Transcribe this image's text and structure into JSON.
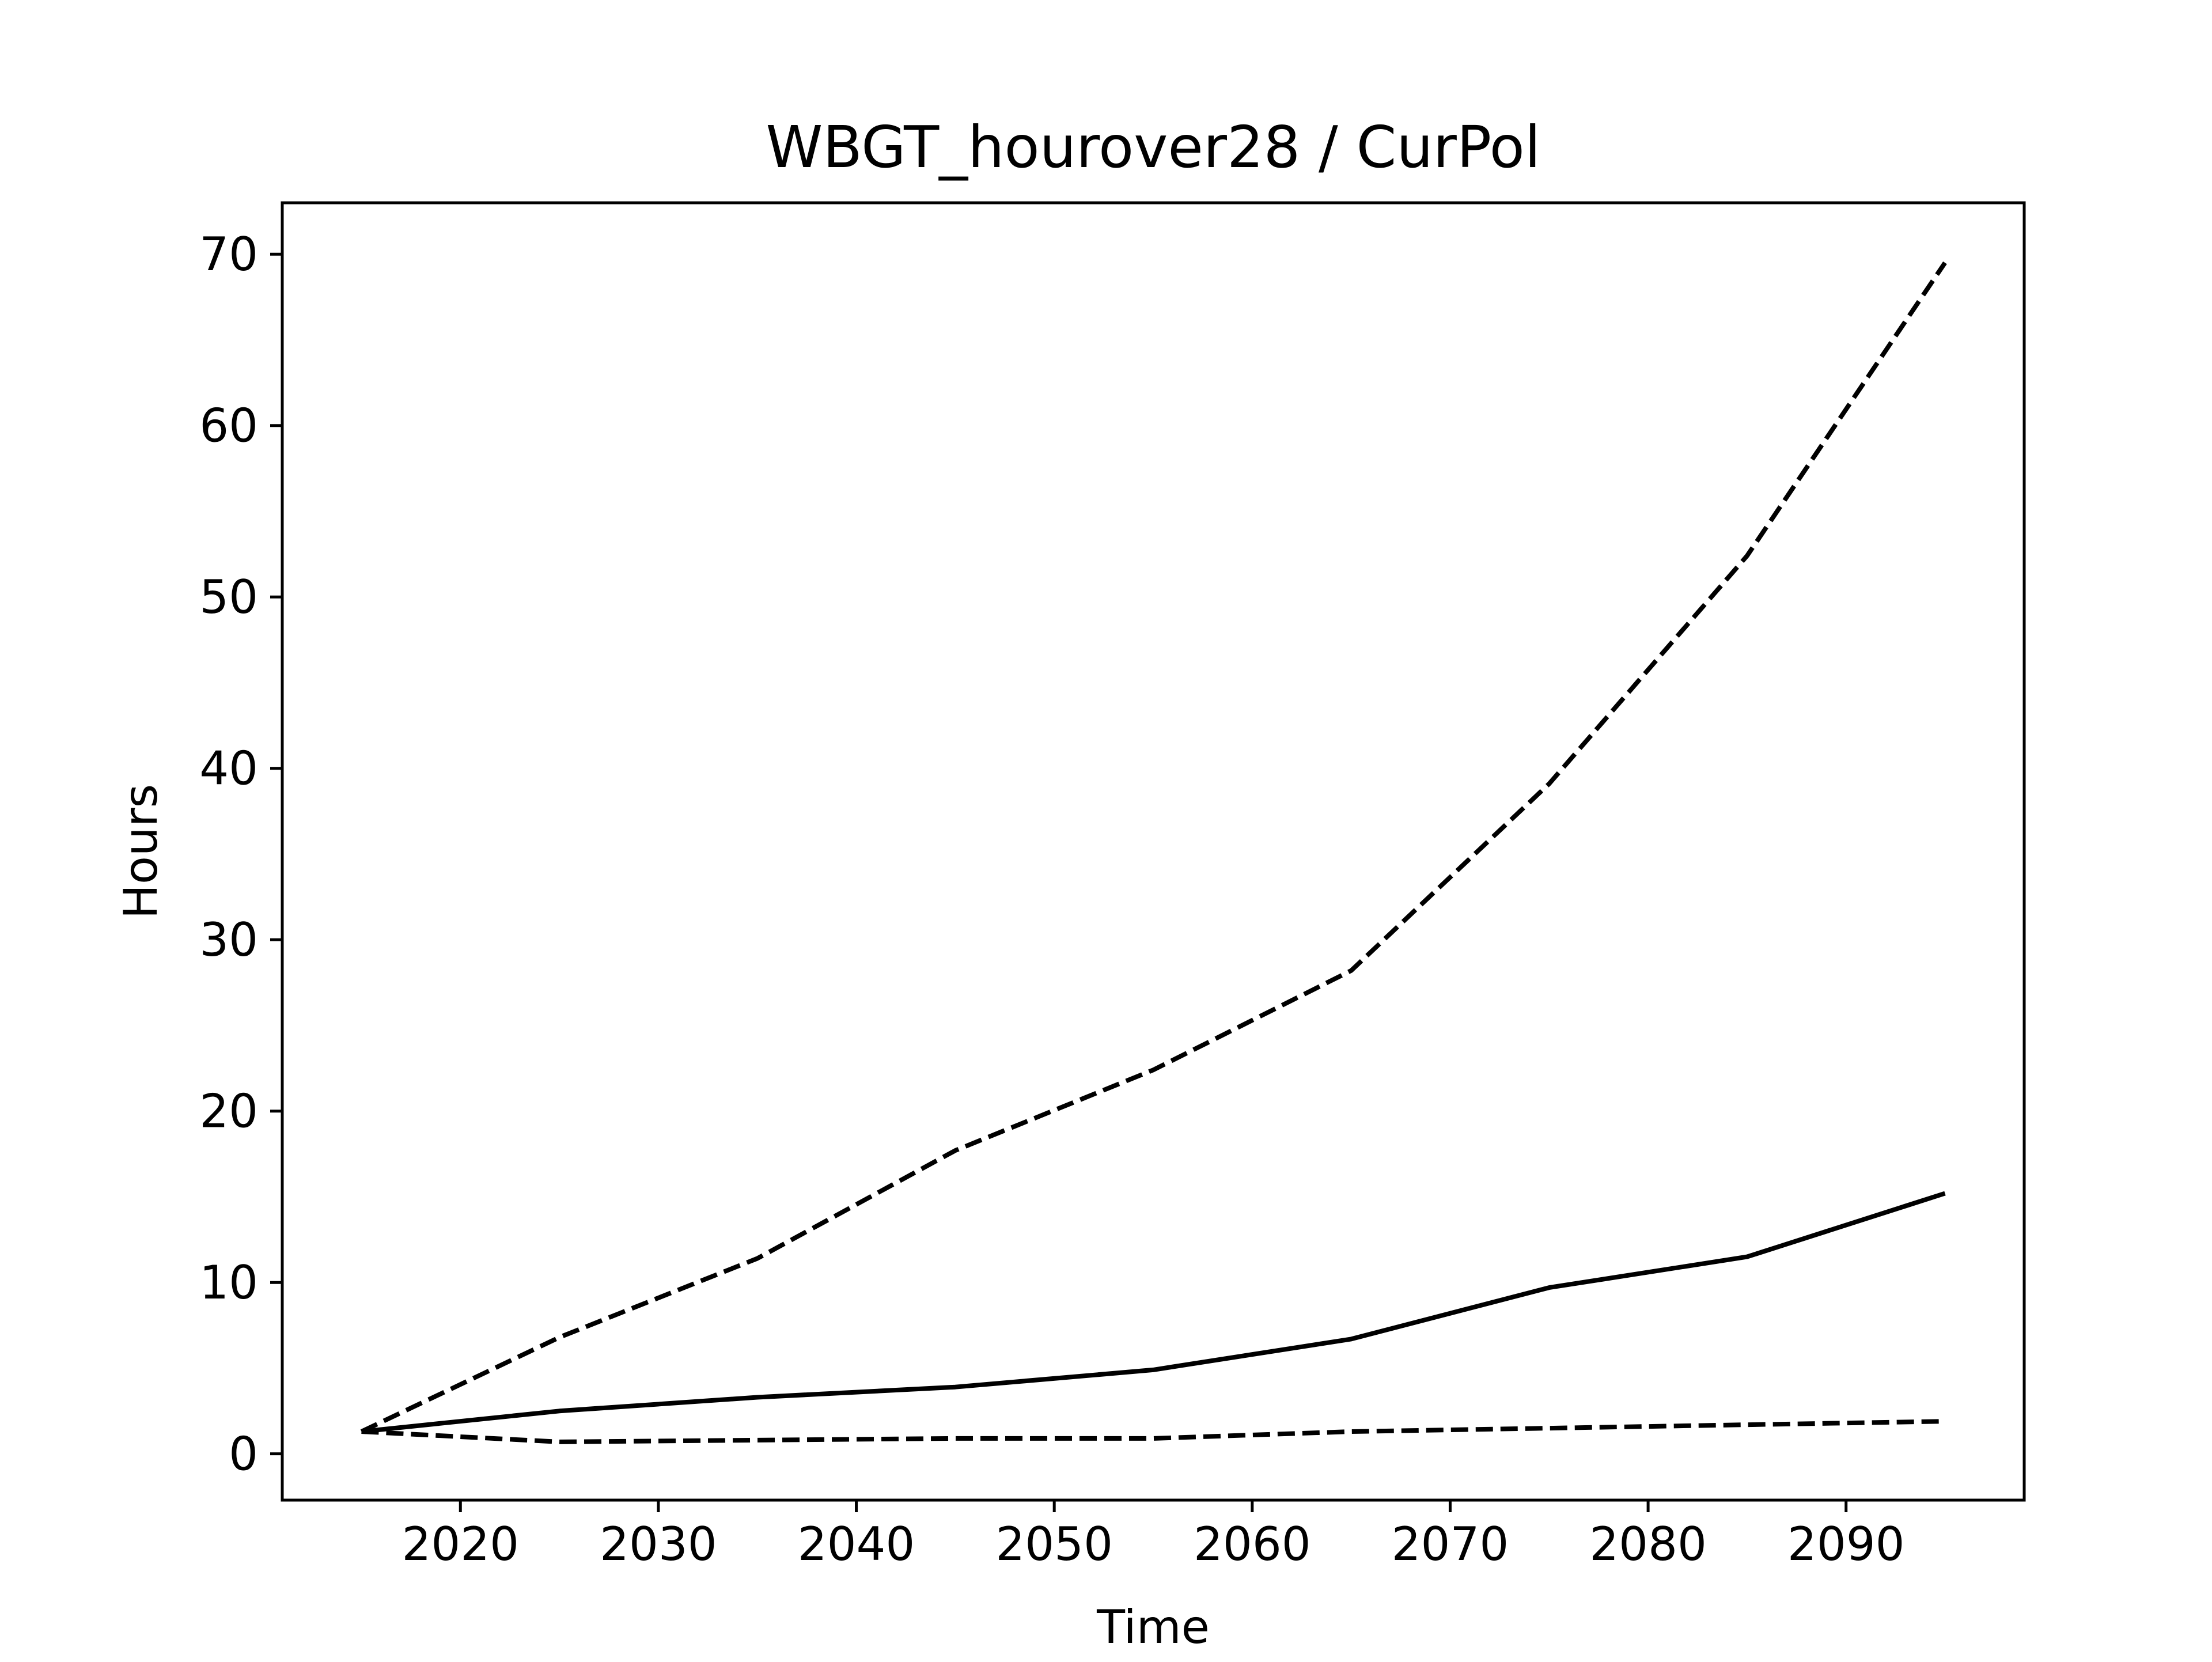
{
  "chart_data": {
    "type": "line",
    "title": "WBGT_hourover28 / CurPol",
    "xlabel": "Time",
    "ylabel": "Hours",
    "xlim": [
      2011,
      2099
    ],
    "ylim": [
      -2.7,
      73
    ],
    "x_ticks": [
      2020,
      2030,
      2040,
      2050,
      2060,
      2070,
      2080,
      2090
    ],
    "y_ticks": [
      0,
      10,
      20,
      30,
      40,
      50,
      60,
      70
    ],
    "grid": false,
    "legend": "none",
    "color": "#000000",
    "x": [
      2015,
      2025,
      2035,
      2045,
      2055,
      2065,
      2075,
      2085,
      2095
    ],
    "series": [
      {
        "style": "dashed",
        "values": [
          1.3,
          6.8,
          11.4,
          17.7,
          22.4,
          28.2,
          39.1,
          52.4,
          69.5
        ]
      },
      {
        "style": "solid",
        "values": [
          1.3,
          2.5,
          3.3,
          3.9,
          4.9,
          6.7,
          9.7,
          11.5,
          15.2
        ]
      },
      {
        "style": "dashed",
        "values": [
          1.3,
          0.7,
          0.8,
          0.9,
          0.9,
          1.3,
          1.5,
          1.7,
          1.9
        ]
      }
    ]
  }
}
